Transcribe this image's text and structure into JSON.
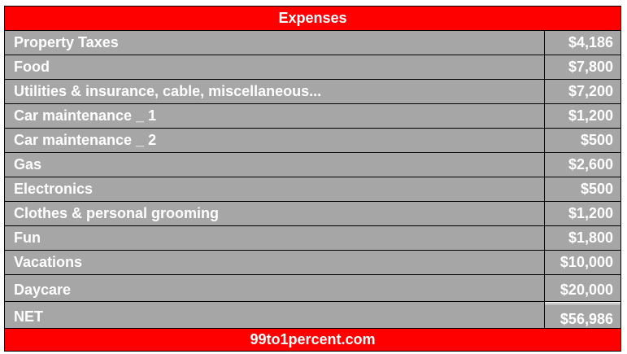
{
  "title": "Expenses",
  "rows": [
    {
      "label": "Property Taxes",
      "value": "$4,186"
    },
    {
      "label": "Food",
      "value": "$7,800"
    },
    {
      "label": "Utilities & insurance, cable, miscellaneous...",
      "value": "$7,200"
    },
    {
      "label": "Car maintenance _ 1",
      "value": "$1,200"
    },
    {
      "label": "Car maintenance _ 2",
      "value": "$500"
    },
    {
      "label": "Gas",
      "value": "$2,600"
    },
    {
      "label": "Electronics",
      "value": "$500"
    },
    {
      "label": "Clothes & personal grooming",
      "value": "$1,200"
    },
    {
      "label": "Fun",
      "value": "$1,800"
    },
    {
      "label": "Vacations",
      "value": "$10,000"
    },
    {
      "label": "Daycare",
      "value": "$20,000"
    }
  ],
  "net": {
    "label": "NET",
    "value": "$56,986"
  },
  "footer": "99to1percent.com",
  "colors": {
    "header_bg": "#ff0000",
    "row_bg": "#a6a6a6",
    "text": "#ffffff"
  }
}
